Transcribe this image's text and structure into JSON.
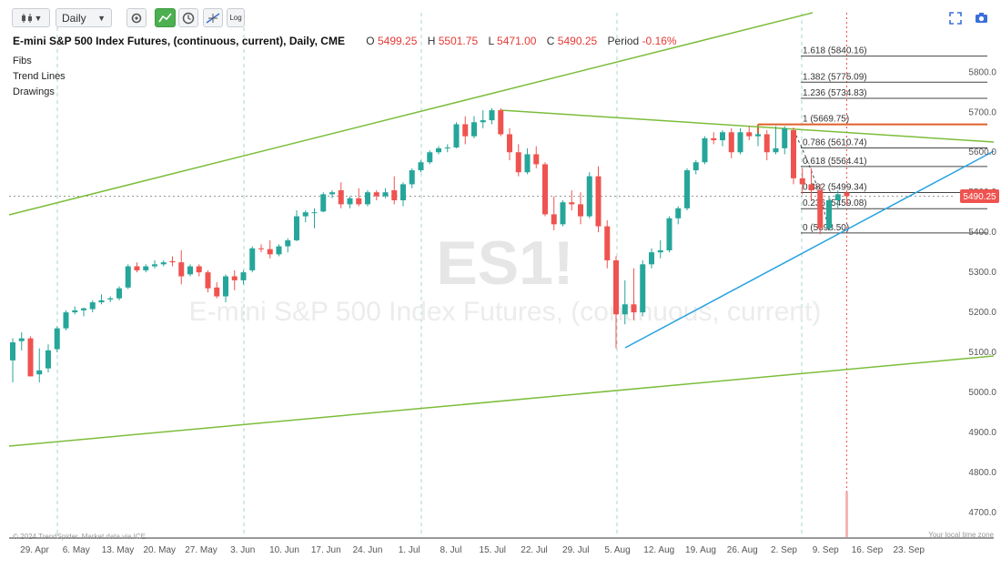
{
  "toolbar": {
    "interval_value": "Daily",
    "log_label": "Log"
  },
  "header": {
    "title": "E-mini S&P 500 Index Futures, (continuous, current), Daily, CME",
    "o_label": "O",
    "o_value": "5499.25",
    "h_label": "H",
    "h_value": "5501.75",
    "l_label": "L",
    "l_value": "5471.00",
    "c_label": "C",
    "c_value": "5490.25",
    "period_label": "Period",
    "period_value": "-0.16%"
  },
  "layers": [
    "Fibs",
    "Trend Lines",
    "Drawings"
  ],
  "watermark": {
    "symbol": "ES1!",
    "name": "E-mini S&P 500 Index Futures, (continuous, current)"
  },
  "footer": {
    "credit": "© 2024 TrendSpider. Market data via ICE",
    "timezone": "Your local time zone"
  },
  "colors": {
    "up": "#26a69a",
    "down": "#ef5350",
    "trend_green": "#7cbd3b",
    "trend_blue": "#29a3e0",
    "fib_one": "#e0602a",
    "last_price": "#ef5350"
  },
  "icons": [
    "bar-style-icon",
    "settings-icon",
    "chart-mode-icon",
    "clock-icon",
    "crosshair-icon",
    "fullscreen-icon",
    "camera-icon"
  ],
  "chart_data": {
    "type": "candlestick",
    "symbol": "ES1!",
    "y_ticks": [
      4700,
      4800,
      4900,
      5000,
      5100,
      5200,
      5300,
      5400,
      5500,
      5600,
      5700,
      5800
    ],
    "ylim": [
      4640,
      5885
    ],
    "x_ticks": [
      "29. Apr",
      "6. May",
      "13. May",
      "20. May",
      "27. May",
      "3. Jun",
      "10. Jun",
      "17. Jun",
      "24. Jun",
      "1. Jul",
      "8. Jul",
      "15. Jul",
      "22. Jul",
      "29. Jul",
      "5. Aug",
      "12. Aug",
      "19. Aug",
      "26. Aug",
      "2. Sep",
      "9. Sep",
      "16. Sep",
      "23. Sep"
    ],
    "last_price": "5490.25",
    "candles": [
      {
        "d": "Apr 26",
        "o": 5080,
        "h": 5135,
        "l": 5025,
        "c": 5125
      },
      {
        "d": "Apr 29",
        "o": 5128,
        "h": 5150,
        "l": 5105,
        "c": 5135
      },
      {
        "d": "Apr 30",
        "o": 5135,
        "h": 5140,
        "l": 5040,
        "c": 5040
      },
      {
        "d": "May 1",
        "o": 5045,
        "h": 5110,
        "l": 5025,
        "c": 5055
      },
      {
        "d": "May 2",
        "o": 5060,
        "h": 5120,
        "l": 5050,
        "c": 5105
      },
      {
        "d": "May 3",
        "o": 5108,
        "h": 5165,
        "l": 5100,
        "c": 5160
      },
      {
        "d": "May 6",
        "o": 5160,
        "h": 5205,
        "l": 5155,
        "c": 5200
      },
      {
        "d": "May 7",
        "o": 5200,
        "h": 5215,
        "l": 5195,
        "c": 5205
      },
      {
        "d": "May 8",
        "o": 5205,
        "h": 5212,
        "l": 5190,
        "c": 5210
      },
      {
        "d": "May 9",
        "o": 5208,
        "h": 5230,
        "l": 5200,
        "c": 5225
      },
      {
        "d": "May 10",
        "o": 5225,
        "h": 5245,
        "l": 5220,
        "c": 5230
      },
      {
        "d": "May 13",
        "o": 5232,
        "h": 5240,
        "l": 5225,
        "c": 5235
      },
      {
        "d": "May 14",
        "o": 5235,
        "h": 5265,
        "l": 5230,
        "c": 5260
      },
      {
        "d": "May 15",
        "o": 5262,
        "h": 5320,
        "l": 5258,
        "c": 5315
      },
      {
        "d": "May 16",
        "o": 5315,
        "h": 5325,
        "l": 5300,
        "c": 5305
      },
      {
        "d": "May 17",
        "o": 5305,
        "h": 5320,
        "l": 5300,
        "c": 5315
      },
      {
        "d": "May 20",
        "o": 5315,
        "h": 5330,
        "l": 5310,
        "c": 5320
      },
      {
        "d": "May 21",
        "o": 5320,
        "h": 5330,
        "l": 5315,
        "c": 5325
      },
      {
        "d": "May 22",
        "o": 5328,
        "h": 5340,
        "l": 5315,
        "c": 5325
      },
      {
        "d": "May 23",
        "o": 5325,
        "h": 5355,
        "l": 5270,
        "c": 5290
      },
      {
        "d": "May 24",
        "o": 5295,
        "h": 5320,
        "l": 5290,
        "c": 5315
      },
      {
        "d": "May 28",
        "o": 5315,
        "h": 5320,
        "l": 5290,
        "c": 5300
      },
      {
        "d": "May 29",
        "o": 5300,
        "h": 5305,
        "l": 5250,
        "c": 5260
      },
      {
        "d": "May 30",
        "o": 5262,
        "h": 5275,
        "l": 5235,
        "c": 5240
      },
      {
        "d": "May 31",
        "o": 5240,
        "h": 5295,
        "l": 5225,
        "c": 5290
      },
      {
        "d": "Jun 3",
        "o": 5290,
        "h": 5305,
        "l": 5255,
        "c": 5280
      },
      {
        "d": "Jun 4",
        "o": 5280,
        "h": 5305,
        "l": 5270,
        "c": 5300
      },
      {
        "d": "Jun 5",
        "o": 5305,
        "h": 5365,
        "l": 5300,
        "c": 5360
      },
      {
        "d": "Jun 6",
        "o": 5360,
        "h": 5370,
        "l": 5350,
        "c": 5358
      },
      {
        "d": "Jun 7",
        "o": 5358,
        "h": 5380,
        "l": 5335,
        "c": 5345
      },
      {
        "d": "Jun 10",
        "o": 5345,
        "h": 5370,
        "l": 5340,
        "c": 5365
      },
      {
        "d": "Jun 11",
        "o": 5365,
        "h": 5385,
        "l": 5350,
        "c": 5380
      },
      {
        "d": "Jun 12",
        "o": 5380,
        "h": 5455,
        "l": 5378,
        "c": 5440
      },
      {
        "d": "Jun 13",
        "o": 5440,
        "h": 5455,
        "l": 5425,
        "c": 5450
      },
      {
        "d": "Jun 14",
        "o": 5450,
        "h": 5460,
        "l": 5410,
        "c": 5450
      },
      {
        "d": "Jun 17",
        "o": 5452,
        "h": 5500,
        "l": 5450,
        "c": 5495
      },
      {
        "d": "Jun 18",
        "o": 5495,
        "h": 5505,
        "l": 5485,
        "c": 5500
      },
      {
        "d": "Jun 20",
        "o": 5505,
        "h": 5525,
        "l": 5460,
        "c": 5470
      },
      {
        "d": "Jun 21",
        "o": 5470,
        "h": 5490,
        "l": 5460,
        "c": 5485
      },
      {
        "d": "Jun 24",
        "o": 5485,
        "h": 5510,
        "l": 5465,
        "c": 5470
      },
      {
        "d": "Jun 25",
        "o": 5470,
        "h": 5505,
        "l": 5465,
        "c": 5500
      },
      {
        "d": "Jun 26",
        "o": 5500,
        "h": 5505,
        "l": 5480,
        "c": 5490
      },
      {
        "d": "Jun 27",
        "o": 5490,
        "h": 5510,
        "l": 5485,
        "c": 5500
      },
      {
        "d": "Jun 28",
        "o": 5505,
        "h": 5540,
        "l": 5470,
        "c": 5480
      },
      {
        "d": "Jul 1",
        "o": 5480,
        "h": 5525,
        "l": 5465,
        "c": 5520
      },
      {
        "d": "Jul 2",
        "o": 5520,
        "h": 5560,
        "l": 5510,
        "c": 5555
      },
      {
        "d": "Jul 3",
        "o": 5555,
        "h": 5580,
        "l": 5550,
        "c": 5575
      },
      {
        "d": "Jul 5",
        "o": 5575,
        "h": 5605,
        "l": 5570,
        "c": 5600
      },
      {
        "d": "Jul 8",
        "o": 5600,
        "h": 5615,
        "l": 5595,
        "c": 5610
      },
      {
        "d": "Jul 9",
        "o": 5610,
        "h": 5620,
        "l": 5600,
        "c": 5612
      },
      {
        "d": "Jul 10",
        "o": 5612,
        "h": 5675,
        "l": 5610,
        "c": 5670
      },
      {
        "d": "Jul 11",
        "o": 5670,
        "h": 5690,
        "l": 5620,
        "c": 5640
      },
      {
        "d": "Jul 12",
        "o": 5640,
        "h": 5690,
        "l": 5635,
        "c": 5675
      },
      {
        "d": "Jul 15",
        "o": 5675,
        "h": 5705,
        "l": 5660,
        "c": 5680
      },
      {
        "d": "Jul 16",
        "o": 5680,
        "h": 5710,
        "l": 5670,
        "c": 5705
      },
      {
        "d": "Jul 17",
        "o": 5705,
        "h": 5710,
        "l": 5640,
        "c": 5645
      },
      {
        "d": "Jul 18",
        "o": 5645,
        "h": 5660,
        "l": 5580,
        "c": 5600
      },
      {
        "d": "Jul 19",
        "o": 5600,
        "h": 5620,
        "l": 5540,
        "c": 5550
      },
      {
        "d": "Jul 22",
        "o": 5550,
        "h": 5610,
        "l": 5545,
        "c": 5595
      },
      {
        "d": "Jul 23",
        "o": 5595,
        "h": 5615,
        "l": 5560,
        "c": 5570
      },
      {
        "d": "Jul 24",
        "o": 5570,
        "h": 5575,
        "l": 5440,
        "c": 5445
      },
      {
        "d": "Jul 25",
        "o": 5445,
        "h": 5490,
        "l": 5405,
        "c": 5420
      },
      {
        "d": "Jul 26",
        "o": 5420,
        "h": 5480,
        "l": 5415,
        "c": 5475
      },
      {
        "d": "Jul 29",
        "o": 5475,
        "h": 5505,
        "l": 5455,
        "c": 5470
      },
      {
        "d": "Jul 30",
        "o": 5470,
        "h": 5500,
        "l": 5420,
        "c": 5440
      },
      {
        "d": "Jul 31",
        "o": 5440,
        "h": 5550,
        "l": 5435,
        "c": 5540
      },
      {
        "d": "Aug 1",
        "o": 5540,
        "h": 5565,
        "l": 5400,
        "c": 5415
      },
      {
        "d": "Aug 2",
        "o": 5415,
        "h": 5430,
        "l": 5310,
        "c": 5330
      },
      {
        "d": "Aug 5",
        "o": 5330,
        "h": 5340,
        "l": 5110,
        "c": 5195
      },
      {
        "d": "Aug 6",
        "o": 5195,
        "h": 5280,
        "l": 5170,
        "c": 5220
      },
      {
        "d": "Aug 7",
        "o": 5220,
        "h": 5310,
        "l": 5180,
        "c": 5200
      },
      {
        "d": "Aug 8",
        "o": 5200,
        "h": 5330,
        "l": 5190,
        "c": 5320
      },
      {
        "d": "Aug 9",
        "o": 5320,
        "h": 5360,
        "l": 5310,
        "c": 5350
      },
      {
        "d": "Aug 12",
        "o": 5350,
        "h": 5380,
        "l": 5335,
        "c": 5355
      },
      {
        "d": "Aug 13",
        "o": 5355,
        "h": 5440,
        "l": 5350,
        "c": 5435
      },
      {
        "d": "Aug 14",
        "o": 5435,
        "h": 5465,
        "l": 5420,
        "c": 5460
      },
      {
        "d": "Aug 15",
        "o": 5460,
        "h": 5560,
        "l": 5455,
        "c": 5555
      },
      {
        "d": "Aug 16",
        "o": 5555,
        "h": 5580,
        "l": 5545,
        "c": 5575
      },
      {
        "d": "Aug 19",
        "o": 5575,
        "h": 5640,
        "l": 5570,
        "c": 5635
      },
      {
        "d": "Aug 20",
        "o": 5635,
        "h": 5650,
        "l": 5620,
        "c": 5630
      },
      {
        "d": "Aug 21",
        "o": 5630,
        "h": 5655,
        "l": 5615,
        "c": 5650
      },
      {
        "d": "Aug 22",
        "o": 5650,
        "h": 5660,
        "l": 5585,
        "c": 5600
      },
      {
        "d": "Aug 23",
        "o": 5600,
        "h": 5660,
        "l": 5595,
        "c": 5650
      },
      {
        "d": "Aug 26",
        "o": 5650,
        "h": 5665,
        "l": 5630,
        "c": 5640
      },
      {
        "d": "Aug 27",
        "o": 5640,
        "h": 5650,
        "l": 5615,
        "c": 5645
      },
      {
        "d": "Aug 28",
        "o": 5645,
        "h": 5655,
        "l": 5580,
        "c": 5600
      },
      {
        "d": "Aug 29",
        "o": 5600,
        "h": 5665,
        "l": 5595,
        "c": 5610
      },
      {
        "d": "Aug 30",
        "o": 5610,
        "h": 5665,
        "l": 5595,
        "c": 5660
      },
      {
        "d": "Sep 3",
        "o": 5655,
        "h": 5662,
        "l": 5520,
        "c": 5535
      },
      {
        "d": "Sep 4",
        "o": 5535,
        "h": 5560,
        "l": 5495,
        "c": 5520
      },
      {
        "d": "Sep 5",
        "o": 5520,
        "h": 5560,
        "l": 5480,
        "c": 5505
      },
      {
        "d": "Sep 6",
        "o": 5505,
        "h": 5520,
        "l": 5395,
        "c": 5410
      },
      {
        "d": "Sep 9",
        "o": 5410,
        "h": 5490,
        "l": 5405,
        "c": 5480
      },
      {
        "d": "Sep 10",
        "o": 5480,
        "h": 5505,
        "l": 5460,
        "c": 5495
      },
      {
        "d": "Sep 11",
        "o": 5499.25,
        "h": 5501.75,
        "l": 5471,
        "c": 5490.25
      }
    ],
    "fib_levels": [
      {
        "ratio": "0",
        "price": 5398.5,
        "label": "0 (5398.50)"
      },
      {
        "ratio": "0.236",
        "price": 5459.08,
        "label": "0.236 (5459.08)"
      },
      {
        "ratio": "0.382",
        "price": 5499.34,
        "label": "0.382 (5499.34)"
      },
      {
        "ratio": "0.618",
        "price": 5564.41,
        "label": "0.618 (5564.41)"
      },
      {
        "ratio": "0.786",
        "price": 5610.74,
        "label": "0.786 (5610.74)"
      },
      {
        "ratio": "1",
        "price": 5669.75,
        "label": "1 (5669.75)"
      },
      {
        "ratio": "1.236",
        "price": 5734.83,
        "label": "1.236 (5734.83)"
      },
      {
        "ratio": "1.382",
        "price": 5775.09,
        "label": "1.382 (5775.09)"
      },
      {
        "ratio": "1.618",
        "price": 5840.16,
        "label": "1.618 (5840.16)"
      }
    ]
  }
}
